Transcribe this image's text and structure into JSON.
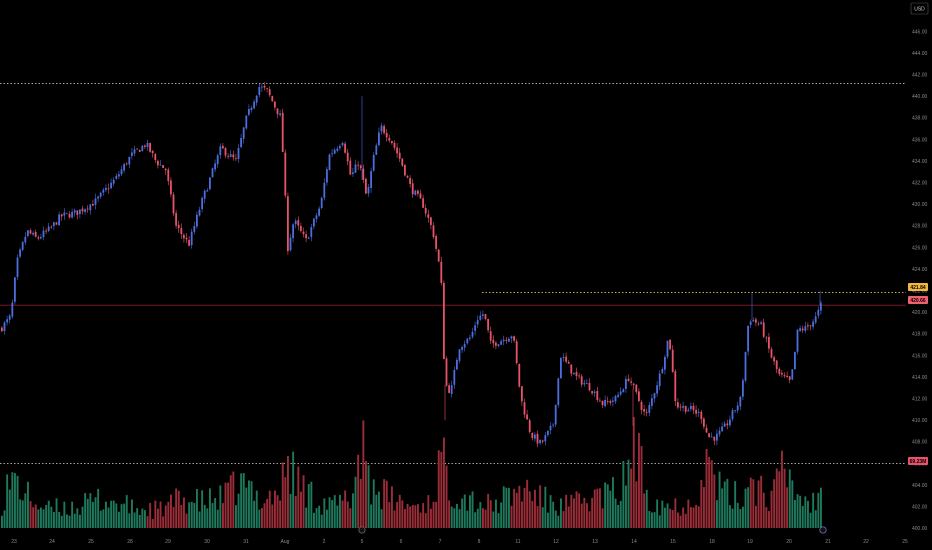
{
  "currency": "USD",
  "colors": {
    "up": "#4b6fe0",
    "down": "#e8536a",
    "vol_up": "#1e7a5c",
    "vol_down": "#9b2d38",
    "bg": "#000000",
    "grid_line": "#d9d9d9"
  },
  "chart_data": {
    "type": "candlestick",
    "title": "",
    "y_axis": {
      "range": [
        399.0,
        447.2
      ],
      "ticks": [
        "446.00",
        "444.00",
        "442.00",
        "440.00",
        "438.00",
        "436.00",
        "434.00",
        "432.00",
        "430.00",
        "428.00",
        "426.00",
        "424.00",
        "422.00",
        "420.00",
        "418.00",
        "416.00",
        "414.00",
        "412.00",
        "410.00",
        "408.00",
        "406.00",
        "404.00",
        "402.00",
        "400.00"
      ]
    },
    "x_axis": {
      "ticks": [
        "23",
        "24",
        "25",
        "28",
        "29",
        "30",
        "31",
        "Aug",
        "2",
        "5",
        "6",
        "7",
        "8",
        "11",
        "12",
        "13",
        "14",
        "15",
        "18",
        "19",
        "20",
        "21",
        "22",
        "25"
      ]
    },
    "price_path": [
      [
        0,
        418.5
      ],
      [
        10,
        419.6
      ],
      [
        16,
        424.6
      ],
      [
        26,
        427.5
      ],
      [
        36,
        426.8
      ],
      [
        50,
        427.8
      ],
      [
        60,
        428.9
      ],
      [
        75,
        429.2
      ],
      [
        95,
        430.3
      ],
      [
        115,
        432.4
      ],
      [
        130,
        434.5
      ],
      [
        145,
        435.6
      ],
      [
        155,
        434.0
      ],
      [
        165,
        433.2
      ],
      [
        175,
        428.0
      ],
      [
        188,
        426.3
      ],
      [
        200,
        430.0
      ],
      [
        220,
        435.2
      ],
      [
        235,
        434.0
      ],
      [
        245,
        437.8
      ],
      [
        258,
        440.9
      ],
      [
        266,
        440.5
      ],
      [
        280,
        438.0
      ],
      [
        287,
        426.0
      ],
      [
        293,
        428.5
      ],
      [
        305,
        426.6
      ],
      [
        320,
        430.0
      ],
      [
        328,
        434.5
      ],
      [
        342,
        436.0
      ],
      [
        350,
        432.5
      ],
      [
        358,
        434.0
      ],
      [
        366,
        430.5
      ],
      [
        372,
        434.0
      ],
      [
        380,
        437.2
      ],
      [
        390,
        436.0
      ],
      [
        400,
        434.0
      ],
      [
        410,
        431.5
      ],
      [
        422,
        430.0
      ],
      [
        432,
        427.5
      ],
      [
        440,
        423.5
      ],
      [
        444,
        413.4
      ],
      [
        450,
        412.6
      ],
      [
        458,
        416.8
      ],
      [
        470,
        417.7
      ],
      [
        476,
        419.4
      ],
      [
        483,
        419.9
      ],
      [
        490,
        417.0
      ],
      [
        502,
        417.5
      ],
      [
        512,
        418.0
      ],
      [
        520,
        412.0
      ],
      [
        530,
        408.7
      ],
      [
        540,
        407.8
      ],
      [
        552,
        409.5
      ],
      [
        560,
        416.0
      ],
      [
        575,
        414.0
      ],
      [
        590,
        413.0
      ],
      [
        602,
        411.5
      ],
      [
        615,
        412.0
      ],
      [
        628,
        414.0
      ],
      [
        645,
        410.3
      ],
      [
        660,
        414.5
      ],
      [
        668,
        417.9
      ],
      [
        675,
        411.4
      ],
      [
        690,
        411.0
      ],
      [
        700,
        410.5
      ],
      [
        707,
        408.5
      ],
      [
        715,
        408.4
      ],
      [
        725,
        409.5
      ],
      [
        740,
        412.0
      ],
      [
        748,
        419.5
      ],
      [
        760,
        418.8
      ],
      [
        770,
        416.0
      ],
      [
        778,
        414.2
      ],
      [
        790,
        413.5
      ],
      [
        797,
        418.4
      ],
      [
        805,
        418.5
      ],
      [
        815,
        419.5
      ],
      [
        820,
        420.6
      ]
    ],
    "volume_path": [
      [
        0,
        30
      ],
      [
        5,
        55
      ],
      [
        15,
        65
      ],
      [
        25,
        45
      ],
      [
        45,
        25
      ],
      [
        60,
        28
      ],
      [
        80,
        30
      ],
      [
        100,
        40
      ],
      [
        120,
        32
      ],
      [
        140,
        25
      ],
      [
        160,
        25
      ],
      [
        180,
        40
      ],
      [
        200,
        35
      ],
      [
        220,
        40
      ],
      [
        240,
        60
      ],
      [
        260,
        40
      ],
      [
        280,
        50
      ],
      [
        286,
        95
      ],
      [
        295,
        65
      ],
      [
        310,
        45
      ],
      [
        330,
        30
      ],
      [
        350,
        40
      ],
      [
        362,
        125
      ],
      [
        370,
        60
      ],
      [
        390,
        40
      ],
      [
        410,
        30
      ],
      [
        430,
        35
      ],
      [
        440,
        95
      ],
      [
        450,
        55
      ],
      [
        470,
        40
      ],
      [
        490,
        30
      ],
      [
        510,
        45
      ],
      [
        525,
        55
      ],
      [
        540,
        40
      ],
      [
        560,
        30
      ],
      [
        580,
        35
      ],
      [
        600,
        45
      ],
      [
        620,
        50
      ],
      [
        632,
        115
      ],
      [
        650,
        40
      ],
      [
        670,
        30
      ],
      [
        690,
        35
      ],
      [
        708,
        90
      ],
      [
        720,
        50
      ],
      [
        740,
        40
      ],
      [
        750,
        70
      ],
      [
        770,
        40
      ],
      [
        783,
        80
      ],
      [
        800,
        40
      ],
      [
        815,
        35
      ],
      [
        823,
        60
      ]
    ],
    "horizontal_lines": [
      {
        "price": 441.2,
        "style": "dotted"
      },
      {
        "price": 421.84,
        "style": "dotted",
        "color": "#e0c060",
        "from_x": 482
      },
      {
        "price": 420.66,
        "style": "solid",
        "color": "#8b1a2a"
      },
      {
        "price": 406.0,
        "style": "dotted"
      }
    ],
    "last_price": "420.66",
    "last_price_color": "#f06070",
    "marker_level": "421.84",
    "marker_color": "#f0b841",
    "volume_value": "69.23M",
    "volume_color": "#e8536a",
    "legend": "none",
    "grid": false
  }
}
